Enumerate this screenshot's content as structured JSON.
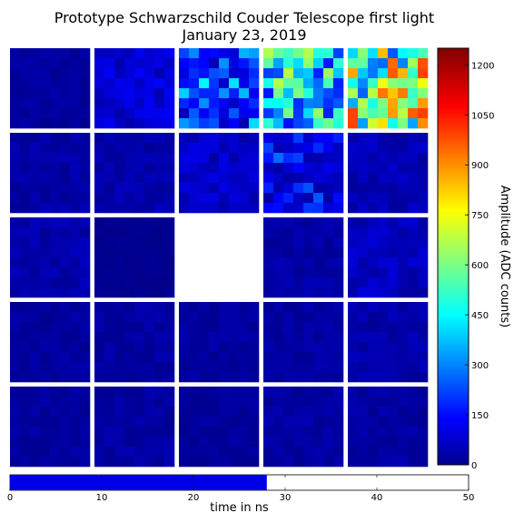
{
  "chart_data": {
    "type": "heatmap",
    "title": "Prototype Schwarzschild Couder Telescope first light",
    "subtitle": "January 23, 2019",
    "colorbar": {
      "label": "Amplitude (ADC counts)",
      "range": [
        0,
        1250
      ],
      "ticks": [
        0,
        150,
        300,
        450,
        600,
        750,
        900,
        1050,
        1200
      ],
      "colormap": "jet"
    },
    "camera": {
      "module_rows": 5,
      "module_cols": 5,
      "pixels_per_module": 8,
      "missing_modules": [
        [
          2,
          2
        ]
      ],
      "module_mean_amplitude": [
        [
          40,
          110,
          260,
          480,
          720
        ],
        [
          50,
          55,
          90,
          180,
          70
        ],
        [
          55,
          20,
          null,
          50,
          80
        ],
        [
          40,
          45,
          40,
          45,
          55
        ],
        [
          40,
          45,
          35,
          45,
          45
        ]
      ]
    },
    "time_axis": {
      "label": "time in ns",
      "range": [
        0,
        50
      ],
      "ticks": [
        0,
        10,
        20,
        30,
        40,
        50
      ],
      "progress_value": 28,
      "fill_color": "#0000e8"
    }
  }
}
